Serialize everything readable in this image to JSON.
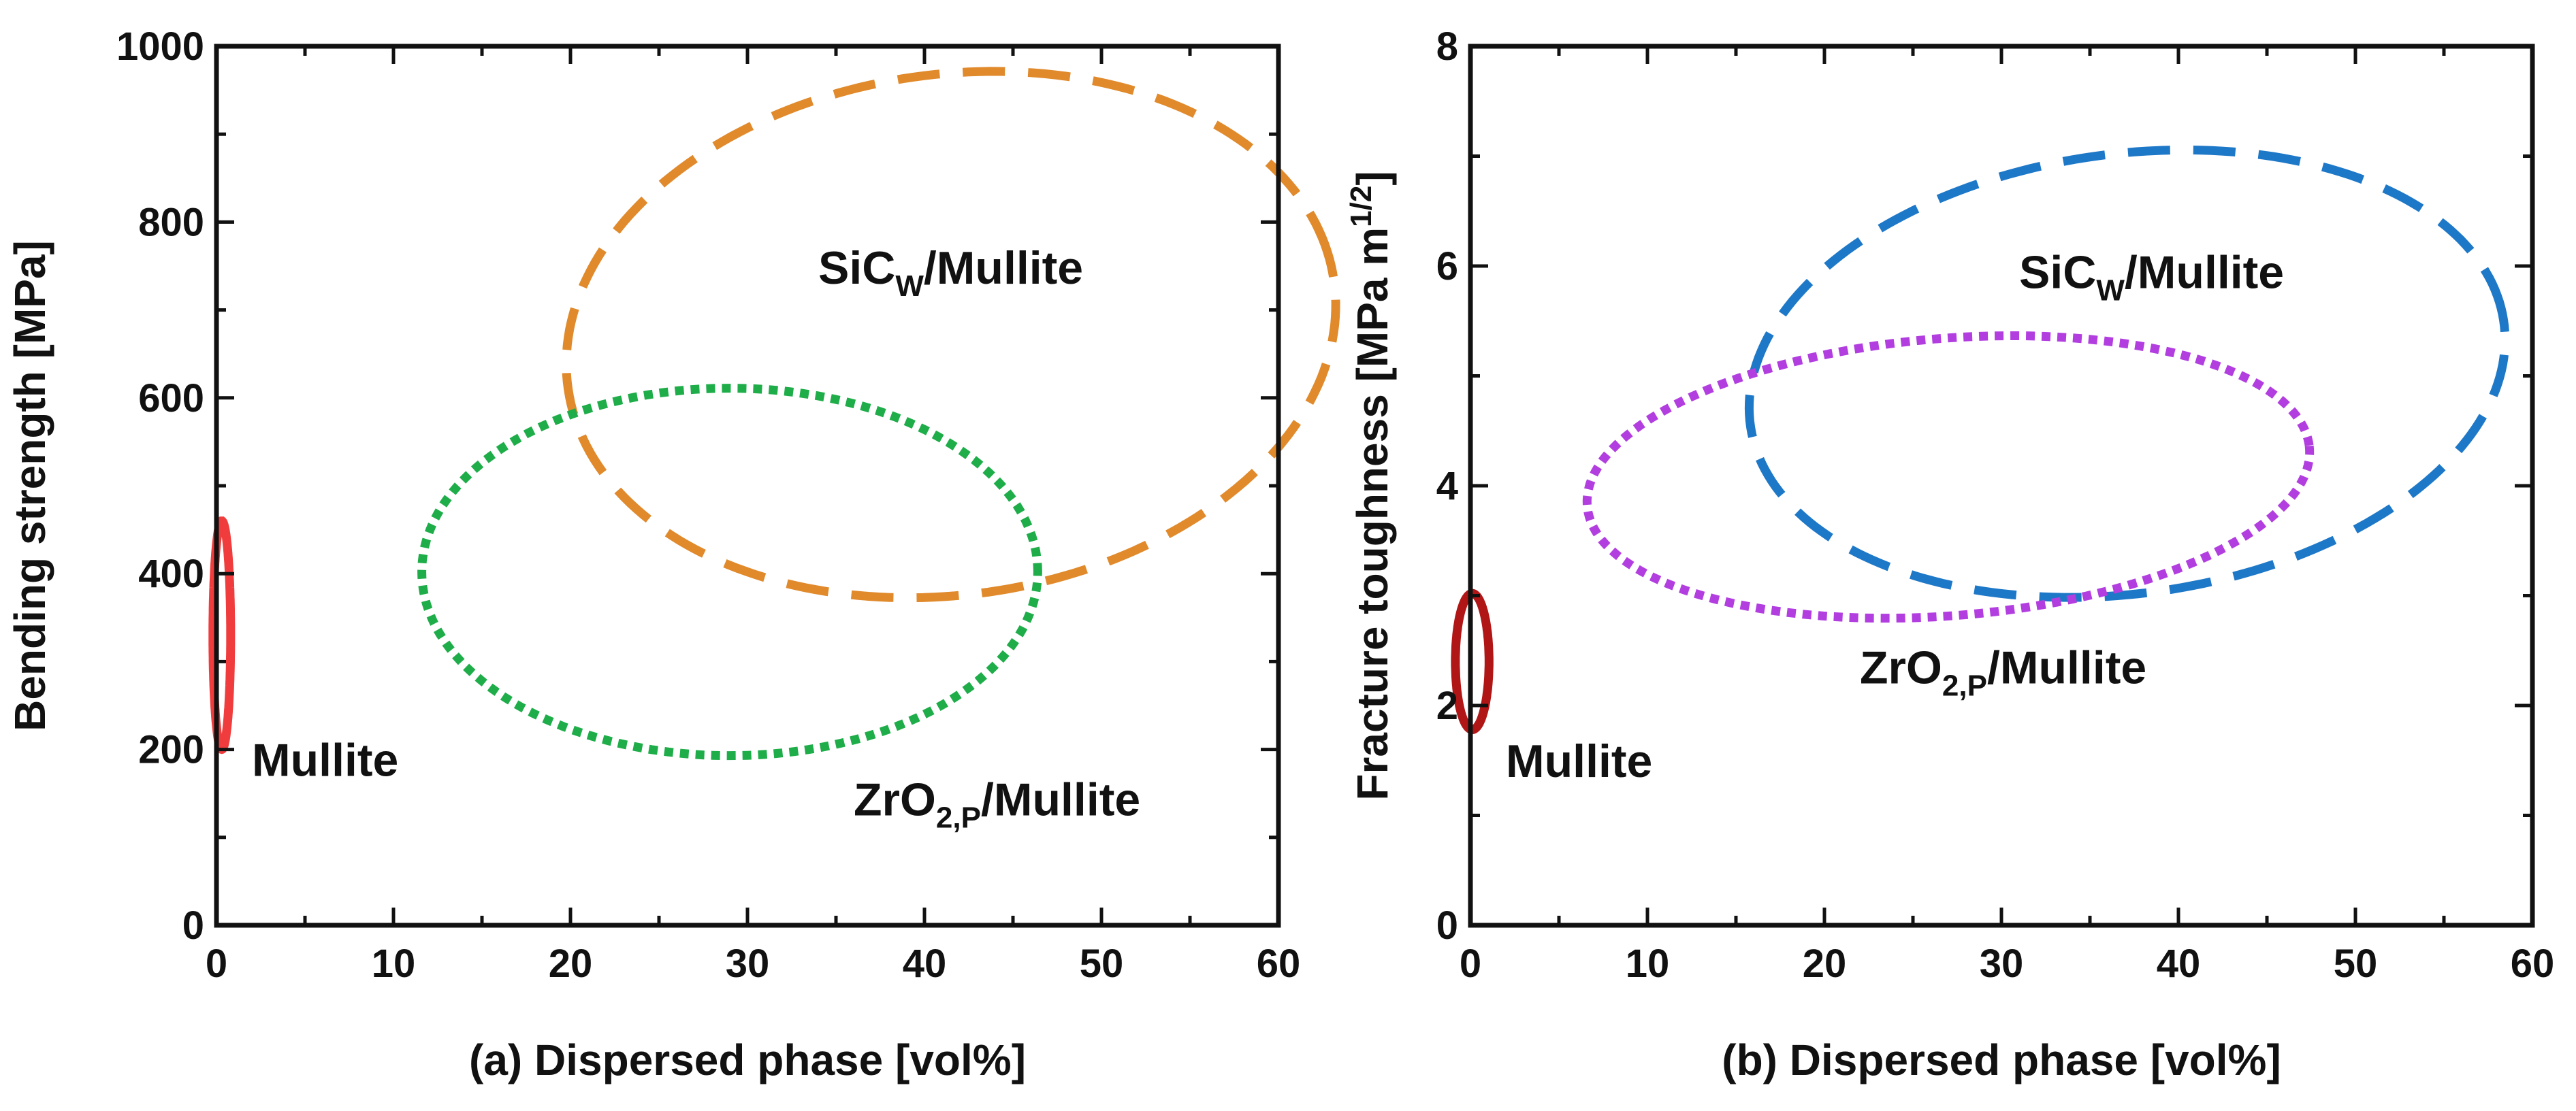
{
  "chart_data": [
    {
      "type": "region",
      "id": "panel-a",
      "xlabel": "(a) Dispersed phase [vol%]",
      "ylabel": "Bending strength [MPa]",
      "xlim": [
        0,
        60
      ],
      "ylim": [
        0,
        1000
      ],
      "xticks": [
        0,
        10,
        20,
        30,
        40,
        50,
        60
      ],
      "yticks": [
        0,
        200,
        400,
        600,
        800,
        1000
      ],
      "xtick_labels": [
        "0",
        "10",
        "20",
        "30",
        "40",
        "50",
        "60"
      ],
      "ytick_labels": [
        "0",
        "200",
        "400",
        "600",
        "800",
        "1000"
      ],
      "x_minor_step": 5,
      "y_minor_step": 100,
      "regions": [
        {
          "name": "Mullite",
          "label": "Mullite",
          "color": "#f03c3c",
          "style": "solid",
          "cx": 0.3,
          "cy": 330,
          "rx": 0.5,
          "ry": 130,
          "angle": 0,
          "label_at": [
            2,
            170
          ]
        },
        {
          "name": "SiCw/Mullite",
          "label": "SiC",
          "label_sub": "W",
          "label_suffix": "/Mullite",
          "color": "#e08a2c",
          "style": "dashed",
          "cx": 41.5,
          "cy": 672,
          "rx": 22.0,
          "ry": 294,
          "angle": 15,
          "label_at": [
            34,
            730
          ]
        },
        {
          "name": "ZrO2,p/Mullite",
          "label": "ZrO",
          "label_sub": "2,P",
          "label_suffix": "/Mullite",
          "color": "#1fad4a",
          "style": "dotted",
          "cx": 29.0,
          "cy": 402,
          "rx": 17.4,
          "ry": 209,
          "angle": 0,
          "label_at": [
            36,
            125
          ]
        }
      ]
    },
    {
      "type": "region",
      "id": "panel-b",
      "xlabel": "(b) Dispersed phase [vol%]",
      "ylabel": "Fracture toughness [MPa m",
      "ylabel_sup": "1/2",
      "ylabel_end": "]",
      "xlim": [
        0,
        60
      ],
      "ylim": [
        0,
        8
      ],
      "xticks": [
        0,
        10,
        20,
        30,
        40,
        50,
        60
      ],
      "yticks": [
        0,
        2,
        4,
        6,
        8
      ],
      "xtick_labels": [
        "0",
        "10",
        "20",
        "30",
        "40",
        "50",
        "60"
      ],
      "ytick_labels": [
        "0",
        "2",
        "4",
        "6",
        "8"
      ],
      "x_minor_step": 5,
      "y_minor_step": 1,
      "regions": [
        {
          "name": "Mullite",
          "label": "Mullite",
          "color": "#b01616",
          "style": "solid",
          "cx": 0.1,
          "cy": 2.4,
          "rx": 0.95,
          "ry": 0.62,
          "angle": 0,
          "label_at": [
            2,
            1.35
          ]
        },
        {
          "name": "SiCw/Mullite",
          "label": "SiC",
          "label_sub": "W",
          "label_suffix": "/Mullite",
          "color": "#1e78c8",
          "style": "dashed",
          "cx": 37.1,
          "cy": 5.02,
          "rx": 21.6,
          "ry": 1.99,
          "angle": 12,
          "label_at": [
            31,
            5.8
          ]
        },
        {
          "name": "ZrO2,p/Mullite",
          "label": "ZrO",
          "label_sub": "2,P",
          "label_suffix": "/Mullite",
          "color": "#b23ee0",
          "style": "dotted",
          "cx": 27.0,
          "cy": 4.08,
          "rx": 20.5,
          "ry": 1.26,
          "angle": 6,
          "label_at": [
            22,
            2.2
          ]
        }
      ]
    }
  ]
}
